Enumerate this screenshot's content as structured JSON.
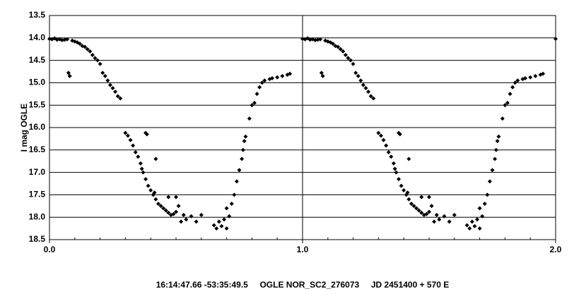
{
  "chart_data": {
    "type": "scatter",
    "title": "16:14:47.66 -53:35:49.5     OGLE NOR_SC2_276073     JD 2451400 + 570 E",
    "ylabel": "I mag OGLE",
    "color": "#000000",
    "y_inverted": true,
    "grid": true,
    "xlim": [
      0,
      2
    ],
    "ylim": [
      13.5,
      18.5
    ],
    "xticks": [
      {
        "value": 0,
        "label": "0.0"
      },
      {
        "value": 1,
        "label": "1.0"
      },
      {
        "value": 2,
        "label": "2.0"
      }
    ],
    "xminorticks": [
      0.1,
      0.2,
      0.3,
      0.4,
      0.5,
      0.6,
      0.7,
      0.8,
      0.9,
      1.1,
      1.2,
      1.3,
      1.4,
      1.5,
      1.6,
      1.7,
      1.8,
      1.9
    ],
    "yticks": [
      {
        "value": 13.5,
        "label": "13.5"
      },
      {
        "value": 14,
        "label": "14.0"
      },
      {
        "value": 14.5,
        "label": "14.5"
      },
      {
        "value": 15,
        "label": "15.0"
      },
      {
        "value": 15.5,
        "label": "15.5"
      },
      {
        "value": 16,
        "label": "16.0"
      },
      {
        "value": 16.5,
        "label": "16.5"
      },
      {
        "value": 17,
        "label": "17.0"
      },
      {
        "value": 17.5,
        "label": "17.5"
      },
      {
        "value": 18,
        "label": "18.0"
      },
      {
        "value": 18.5,
        "label": "18.5"
      }
    ],
    "x": [
      0,
      0.01,
      0.02,
      0.03,
      0.04,
      0.05,
      0.06,
      0.07,
      0.075,
      0.08,
      0.09,
      0.1,
      0.11,
      0.12,
      0.13,
      0.14,
      0.15,
      0.16,
      0.17,
      0.18,
      0.19,
      0.2,
      0.21,
      0.22,
      0.23,
      0.24,
      0.25,
      0.26,
      0.27,
      0.28,
      0.3,
      0.31,
      0.32,
      0.33,
      0.34,
      0.35,
      0.36,
      0.365,
      0.37,
      0.38,
      0.39,
      0.4,
      0.41,
      0.415,
      0.42,
      0.43,
      0.44,
      0.45,
      0.46,
      0.47,
      0.48,
      0.49,
      0.5,
      0.38,
      0.385,
      0.42,
      0.51,
      0.52,
      0.53,
      0.54,
      0.5,
      0.47,
      0.56,
      0.58,
      0.6,
      0.65,
      0.66,
      0.67,
      0.68,
      0.69,
      0.7,
      0.7,
      0.71,
      0.72,
      0.73,
      0.74,
      0.75,
      0.76,
      0.765,
      0.77,
      0.775,
      0.79,
      0.8,
      0.81,
      0.82,
      0.83,
      0.84,
      0.85,
      0.87,
      0.88,
      0.9,
      0.92,
      0.94,
      0.95,
      1,
      1.01,
      1.02,
      1.03,
      1.04,
      1.05,
      1.06,
      1.07,
      1.075,
      1.08,
      1.09,
      1.1,
      1.11,
      1.12,
      1.13,
      1.14,
      1.15,
      1.16,
      1.17,
      1.18,
      1.19,
      1.2,
      1.21,
      1.22,
      1.23,
      1.24,
      1.25,
      1.26,
      1.27,
      1.28,
      1.3,
      1.31,
      1.32,
      1.33,
      1.34,
      1.35,
      1.36,
      1.365,
      1.37,
      1.38,
      1.39,
      1.4,
      1.41,
      1.415,
      1.42,
      1.43,
      1.44,
      1.45,
      1.46,
      1.47,
      1.48,
      1.49,
      1.5,
      1.38,
      1.385,
      1.42,
      1.51,
      1.52,
      1.53,
      1.54,
      1.5,
      1.47,
      1.56,
      1.58,
      1.6,
      1.65,
      1.66,
      1.67,
      1.68,
      1.69,
      1.7,
      1.7,
      1.71,
      1.72,
      1.73,
      1.74,
      1.75,
      1.76,
      1.765,
      1.77,
      1.775,
      1.79,
      1.8,
      1.81,
      1.82,
      1.83,
      1.84,
      1.85,
      1.87,
      1.88,
      1.9,
      1.92,
      1.94,
      1.95,
      2
    ],
    "values": [
      14.02,
      14.03,
      14.01,
      14.04,
      14.03,
      14.05,
      14.04,
      14.03,
      14.78,
      14.85,
      14.06,
      14.08,
      14.1,
      14.13,
      14.18,
      14.2,
      14.25,
      14.3,
      14.38,
      14.45,
      14.5,
      14.58,
      14.78,
      14.85,
      14.95,
      15.05,
      15.12,
      15.2,
      15.3,
      15.35,
      16.12,
      16.18,
      16.28,
      16.4,
      16.55,
      16.65,
      16.8,
      16.92,
      17,
      17.15,
      17.3,
      17.4,
      17.5,
      17.45,
      17.6,
      17.7,
      17.75,
      17.8,
      17.85,
      17.9,
      17.95,
      17.93,
      17.88,
      16.12,
      16.15,
      16.7,
      17.75,
      18.1,
      17.95,
      18.05,
      17.55,
      17.55,
      17.98,
      18.1,
      17.95,
      18.18,
      18.25,
      18.1,
      18.2,
      18.05,
      18.25,
      17.8,
      17.98,
      17.7,
      17.5,
      17.2,
      16.95,
      16.7,
      16.5,
      16.3,
      16.2,
      15.8,
      15.5,
      15.45,
      15.25,
      15.1,
      15,
      14.95,
      14.92,
      14.9,
      14.88,
      14.85,
      14.82,
      14.8,
      14.02,
      14.03,
      14.01,
      14.04,
      14.03,
      14.05,
      14.04,
      14.03,
      14.78,
      14.85,
      14.06,
      14.08,
      14.1,
      14.13,
      14.18,
      14.2,
      14.25,
      14.3,
      14.38,
      14.45,
      14.5,
      14.58,
      14.78,
      14.85,
      14.95,
      15.05,
      15.12,
      15.2,
      15.3,
      15.35,
      16.12,
      16.18,
      16.28,
      16.4,
      16.55,
      16.65,
      16.8,
      16.92,
      17,
      17.15,
      17.3,
      17.4,
      17.5,
      17.45,
      17.6,
      17.7,
      17.75,
      17.8,
      17.85,
      17.9,
      17.95,
      17.93,
      17.88,
      16.12,
      16.15,
      16.7,
      17.75,
      18.1,
      17.95,
      18.05,
      17.55,
      17.55,
      17.98,
      18.1,
      17.95,
      18.18,
      18.25,
      18.1,
      18.2,
      18.05,
      18.25,
      17.8,
      17.98,
      17.7,
      17.5,
      17.2,
      16.95,
      16.7,
      16.5,
      16.3,
      16.2,
      15.8,
      15.5,
      15.45,
      15.25,
      15.1,
      15,
      14.95,
      14.92,
      14.9,
      14.88,
      14.85,
      14.82,
      14.8,
      14.02
    ]
  }
}
